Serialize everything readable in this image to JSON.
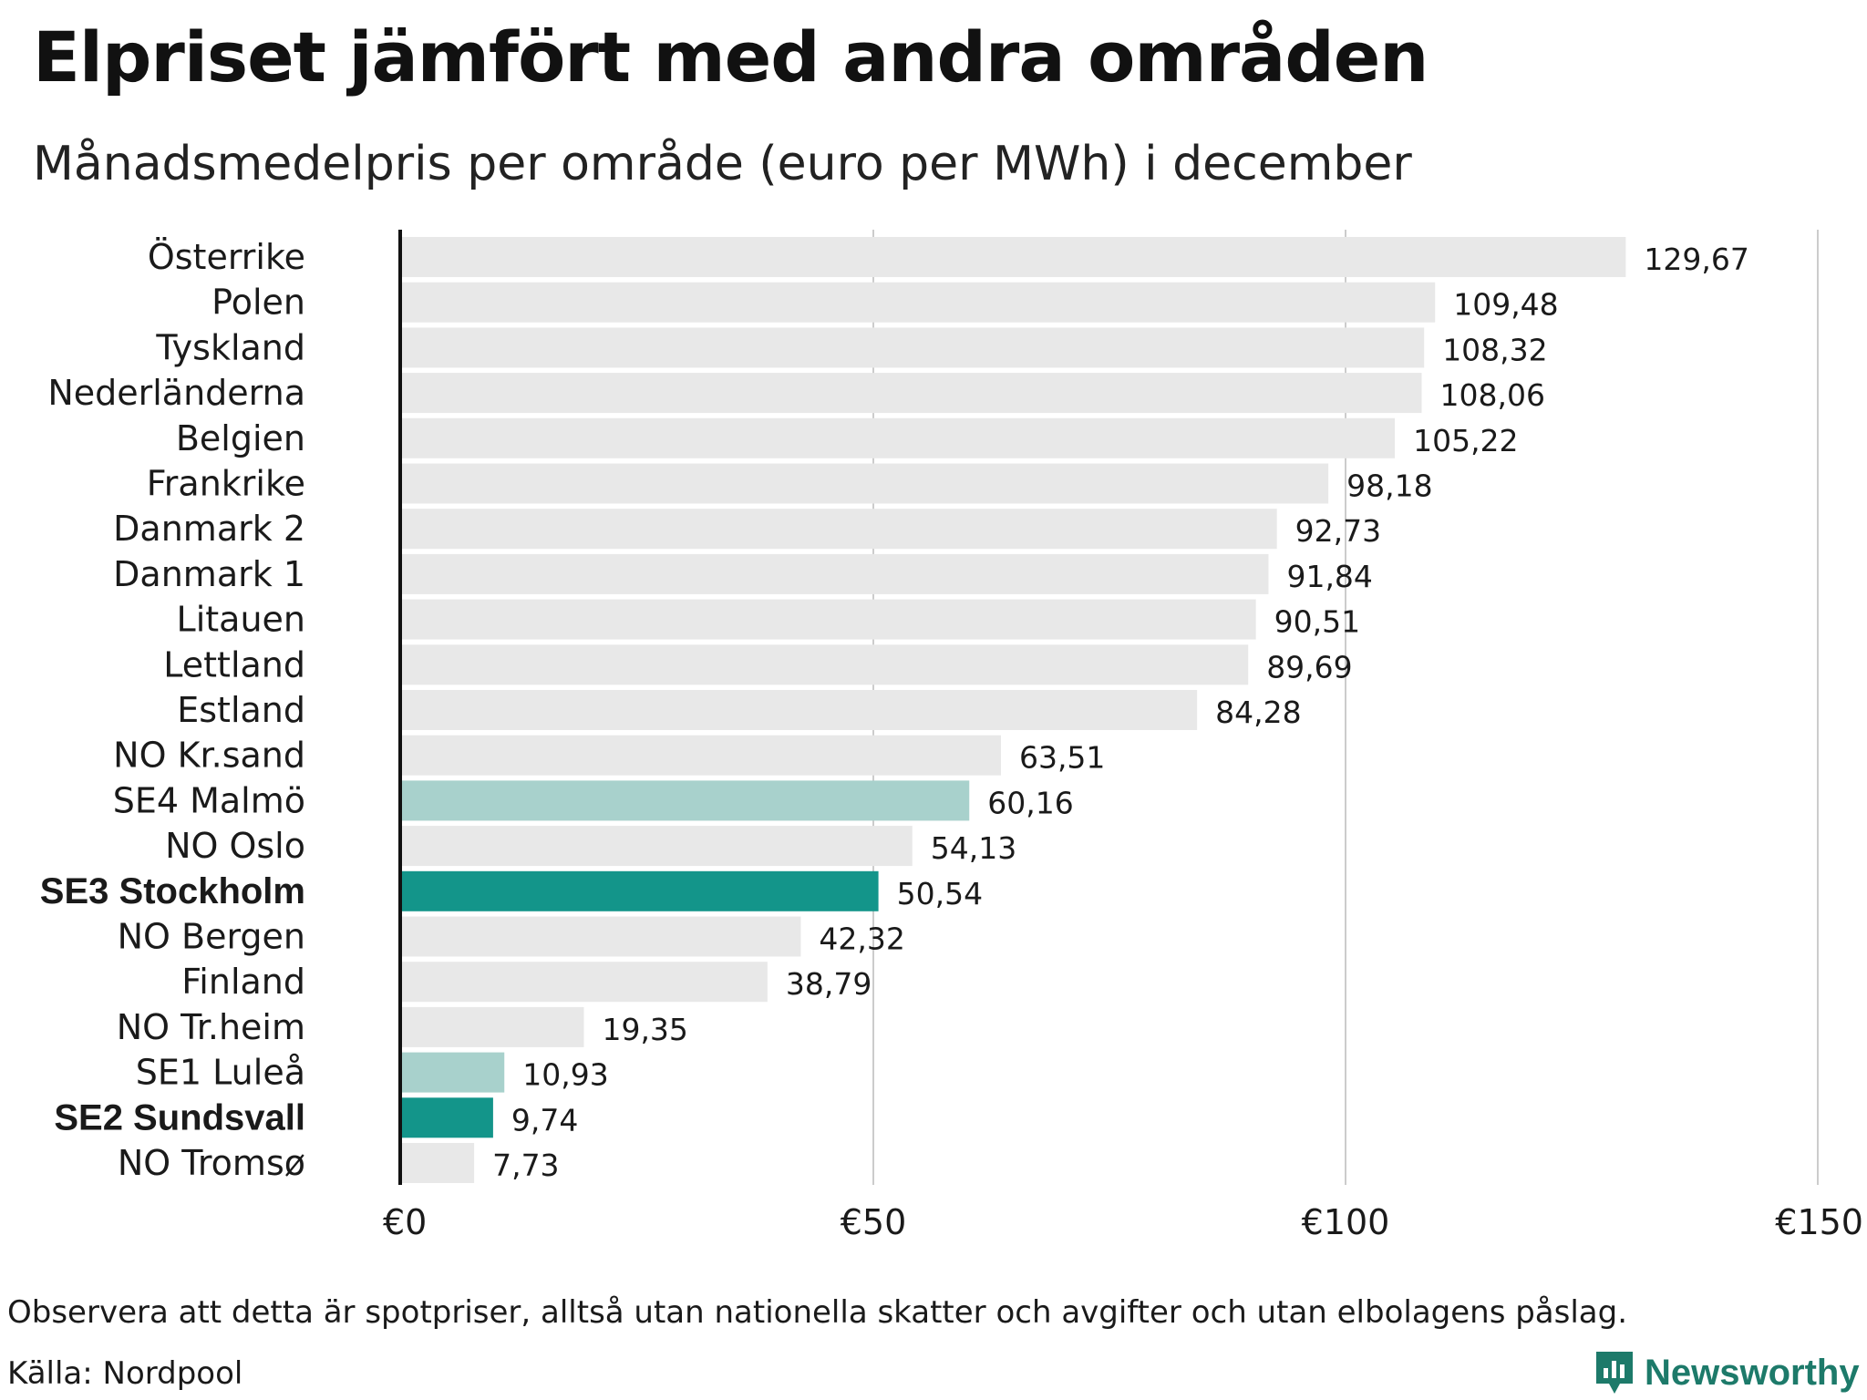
{
  "title": "Elpriset jämfört med andra områden",
  "subtitle": "Månadsmedelpris per område (euro per MWh) i december",
  "note": "Observera att detta är spotpriser, alltså utan nationella skatter och avgifter och utan elbolagens påslag.",
  "source": "Källa: Nordpool",
  "brand": "Newsworthy",
  "colors": {
    "default_bar": "#e8e8e8",
    "highlight_light": "#a8d1cc",
    "highlight_strong": "#13958a",
    "gridline": "#cccccc",
    "axis": "#111111",
    "brand": "#1d7a6a"
  },
  "chart_data": {
    "type": "bar",
    "orientation": "horizontal",
    "xlim": [
      0,
      150
    ],
    "x_ticks": [
      0,
      50,
      100,
      150
    ],
    "x_tick_labels": [
      "€0",
      "€50",
      "€100",
      "€150"
    ],
    "grid": true,
    "bars": [
      {
        "category": "Österrike",
        "value": 129.67,
        "label": "129,67",
        "style": "default"
      },
      {
        "category": "Polen",
        "value": 109.48,
        "label": "109,48",
        "style": "default"
      },
      {
        "category": "Tyskland",
        "value": 108.32,
        "label": "108,32",
        "style": "default"
      },
      {
        "category": "Nederländerna",
        "value": 108.06,
        "label": "108,06",
        "style": "default"
      },
      {
        "category": "Belgien",
        "value": 105.22,
        "label": "105,22",
        "style": "default"
      },
      {
        "category": "Frankrike",
        "value": 98.18,
        "label": "98,18",
        "style": "default"
      },
      {
        "category": "Danmark  2",
        "value": 92.73,
        "label": "92,73",
        "style": "default"
      },
      {
        "category": "Danmark  1",
        "value": 91.84,
        "label": "91,84",
        "style": "default"
      },
      {
        "category": "Litauen",
        "value": 90.51,
        "label": "90,51",
        "style": "default"
      },
      {
        "category": "Lettland",
        "value": 89.69,
        "label": "89,69",
        "style": "default"
      },
      {
        "category": "Estland",
        "value": 84.28,
        "label": "84,28",
        "style": "default"
      },
      {
        "category": "NO Kr.sand",
        "value": 63.51,
        "label": "63,51",
        "style": "default"
      },
      {
        "category": "SE4  Malmö",
        "value": 60.16,
        "label": "60,16",
        "style": "light"
      },
      {
        "category": "NO Oslo",
        "value": 54.13,
        "label": "54,13",
        "style": "default"
      },
      {
        "category": "SE3 Stockholm",
        "value": 50.54,
        "label": "50,54",
        "style": "strong"
      },
      {
        "category": "NO Bergen",
        "value": 42.32,
        "label": "42,32",
        "style": "default"
      },
      {
        "category": "Finland",
        "value": 38.79,
        "label": "38,79",
        "style": "default"
      },
      {
        "category": "NO Tr.heim",
        "value": 19.35,
        "label": "19,35",
        "style": "default"
      },
      {
        "category": "SE1  Luleå",
        "value": 10.93,
        "label": "10,93",
        "style": "light"
      },
      {
        "category": "SE2 Sundsvall",
        "value": 9.74,
        "label": "9,74",
        "style": "strong"
      },
      {
        "category": "NO Tromsø",
        "value": 7.73,
        "label": "7,73",
        "style": "default"
      }
    ]
  }
}
